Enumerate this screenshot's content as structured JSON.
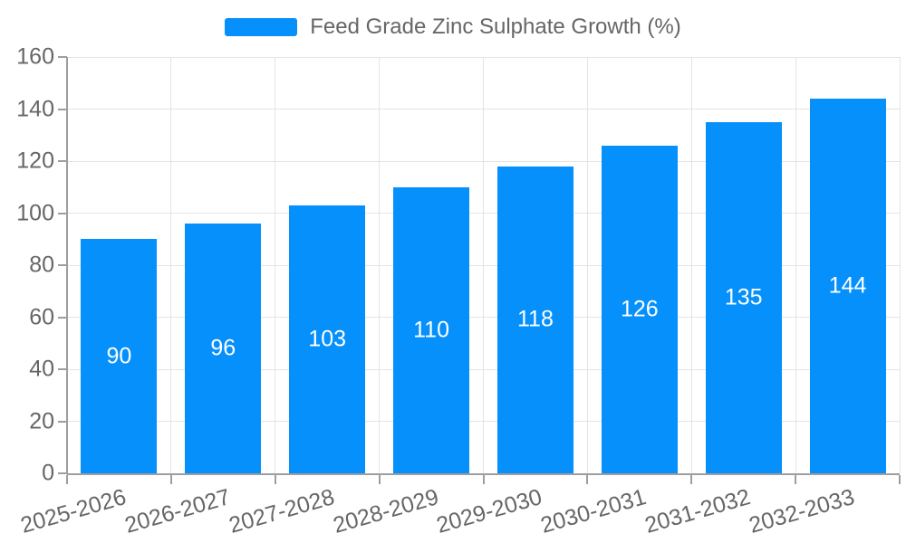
{
  "colors": {
    "bar": "#0590fb",
    "axis": "#9e9e9e",
    "grid": "#e4e4e4",
    "text": "#666666",
    "bar_label": "#ffffff",
    "background": "#ffffff"
  },
  "chart_data": {
    "type": "bar",
    "title": "Feed Grade Zinc Sulphate Growth (%)",
    "categories": [
      "2025-2026",
      "2026-2027",
      "2027-2028",
      "2028-2029",
      "2029-2030",
      "2030-2031",
      "2031-2032",
      "2032-2033"
    ],
    "values": [
      90,
      96,
      103,
      110,
      118,
      126,
      135,
      144
    ],
    "xlabel": "",
    "ylabel": "",
    "ylim": [
      0,
      160
    ],
    "ytick_step": 20,
    "yticks": [
      0,
      20,
      40,
      60,
      80,
      100,
      120,
      140,
      160
    ],
    "grid": true,
    "legend_position": "top",
    "bar_labels_visible": true,
    "x_label_rotation_deg": -16
  }
}
